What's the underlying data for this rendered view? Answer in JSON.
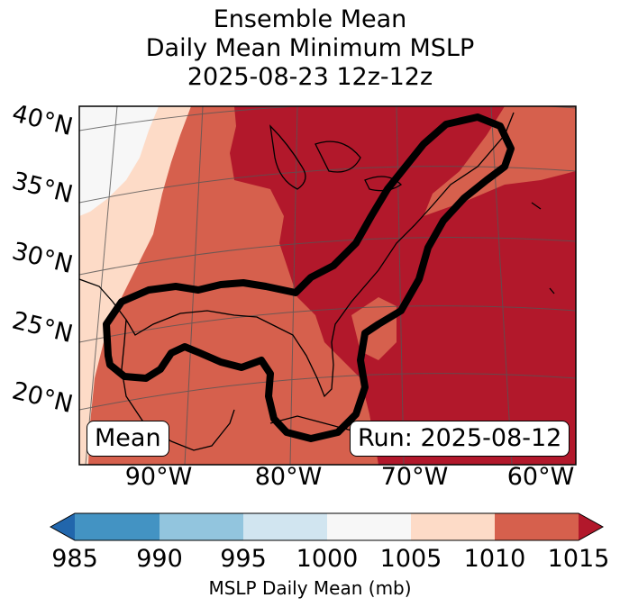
{
  "title": {
    "line1": "Ensemble Mean",
    "line2": "Daily Mean Minimum MSLP",
    "line3": "2025-08-23 12z-12z"
  },
  "map": {
    "lat_labels": [
      "40°N",
      "35°N",
      "30°N",
      "25°N",
      "20°N"
    ],
    "lon_labels": [
      "90°W",
      "80°W",
      "70°W",
      "60°W"
    ],
    "mean_box": "Mean",
    "run_box": "Run: 2025-08-12",
    "colors": {
      "c985": "#2166ac",
      "c990": "#4393c3",
      "c995": "#92c5de",
      "c1000": "#d1e5f0",
      "c1005": "#f7f7f7",
      "c1010": "#fddbc7",
      "c1015": "#d6604d",
      "c1015plus": "#b2182b",
      "contour": "#000000"
    }
  },
  "colorbar": {
    "ticks": [
      "985",
      "990",
      "995",
      "1000",
      "1005",
      "1010",
      "1015"
    ],
    "label": "MSLP Daily Mean (mb)"
  }
}
